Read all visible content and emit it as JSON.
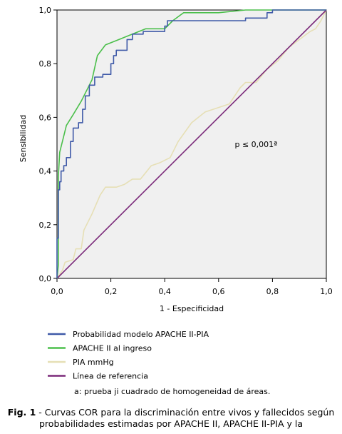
{
  "chart_data": {
    "type": "line",
    "xlabel": "1 - Especificidad",
    "ylabel": "Sensibilidad",
    "xlim": [
      0,
      1
    ],
    "ylim": [
      0,
      1
    ],
    "x_ticks": [
      "0,0",
      "0,2",
      "0,4",
      "0,6",
      "0,8",
      "1,0"
    ],
    "y_ticks": [
      "0,0",
      "0,2",
      "0,4",
      "0,6",
      "0,8",
      "1,0"
    ],
    "background": "#f0f0f0",
    "annotation": "p ≤ 0,001ª",
    "legend_position": "bottom",
    "series": [
      {
        "name": "Probabilidad modelo APACHE II-PIA",
        "color": "#3f5aa8",
        "points": [
          [
            0,
            0
          ],
          [
            0,
            0.15
          ],
          [
            0.005,
            0.15
          ],
          [
            0.005,
            0.33
          ],
          [
            0.01,
            0.33
          ],
          [
            0.01,
            0.36
          ],
          [
            0.015,
            0.36
          ],
          [
            0.015,
            0.4
          ],
          [
            0.025,
            0.4
          ],
          [
            0.025,
            0.42
          ],
          [
            0.035,
            0.42
          ],
          [
            0.035,
            0.45
          ],
          [
            0.05,
            0.45
          ],
          [
            0.05,
            0.51
          ],
          [
            0.06,
            0.51
          ],
          [
            0.06,
            0.56
          ],
          [
            0.08,
            0.56
          ],
          [
            0.08,
            0.58
          ],
          [
            0.095,
            0.58
          ],
          [
            0.095,
            0.63
          ],
          [
            0.105,
            0.63
          ],
          [
            0.105,
            0.68
          ],
          [
            0.12,
            0.68
          ],
          [
            0.12,
            0.72
          ],
          [
            0.14,
            0.72
          ],
          [
            0.14,
            0.75
          ],
          [
            0.17,
            0.75
          ],
          [
            0.17,
            0.76
          ],
          [
            0.2,
            0.76
          ],
          [
            0.2,
            0.8
          ],
          [
            0.21,
            0.8
          ],
          [
            0.21,
            0.83
          ],
          [
            0.22,
            0.83
          ],
          [
            0.22,
            0.85
          ],
          [
            0.26,
            0.85
          ],
          [
            0.26,
            0.89
          ],
          [
            0.28,
            0.89
          ],
          [
            0.28,
            0.91
          ],
          [
            0.32,
            0.91
          ],
          [
            0.32,
            0.92
          ],
          [
            0.4,
            0.92
          ],
          [
            0.4,
            0.94
          ],
          [
            0.41,
            0.94
          ],
          [
            0.41,
            0.96
          ],
          [
            0.7,
            0.96
          ],
          [
            0.7,
            0.97
          ],
          [
            0.78,
            0.97
          ],
          [
            0.78,
            0.99
          ],
          [
            0.8,
            0.99
          ],
          [
            0.8,
            1.0
          ],
          [
            1.0,
            1.0
          ]
        ]
      },
      {
        "name": "APACHE II al ingreso",
        "color": "#4bbf4b",
        "points": [
          [
            0,
            0
          ],
          [
            0.005,
            0.05
          ],
          [
            0.005,
            0.38
          ],
          [
            0.01,
            0.47
          ],
          [
            0.02,
            0.51
          ],
          [
            0.035,
            0.57
          ],
          [
            0.06,
            0.61
          ],
          [
            0.09,
            0.66
          ],
          [
            0.11,
            0.7
          ],
          [
            0.13,
            0.74
          ],
          [
            0.15,
            0.83
          ],
          [
            0.18,
            0.87
          ],
          [
            0.23,
            0.89
          ],
          [
            0.28,
            0.91
          ],
          [
            0.33,
            0.93
          ],
          [
            0.4,
            0.93
          ],
          [
            0.43,
            0.96
          ],
          [
            0.47,
            0.99
          ],
          [
            0.6,
            0.99
          ],
          [
            0.7,
            1.0
          ],
          [
            1.0,
            1.0
          ]
        ]
      },
      {
        "name": "PIA mmHg",
        "color": "#e6dfb5",
        "points": [
          [
            0,
            0
          ],
          [
            0.02,
            0.03
          ],
          [
            0.03,
            0.06
          ],
          [
            0.06,
            0.07
          ],
          [
            0.07,
            0.11
          ],
          [
            0.09,
            0.11
          ],
          [
            0.1,
            0.18
          ],
          [
            0.13,
            0.24
          ],
          [
            0.16,
            0.31
          ],
          [
            0.18,
            0.34
          ],
          [
            0.22,
            0.34
          ],
          [
            0.25,
            0.35
          ],
          [
            0.28,
            0.37
          ],
          [
            0.31,
            0.37
          ],
          [
            0.35,
            0.42
          ],
          [
            0.38,
            0.43
          ],
          [
            0.42,
            0.45
          ],
          [
            0.45,
            0.51
          ],
          [
            0.5,
            0.58
          ],
          [
            0.55,
            0.62
          ],
          [
            0.58,
            0.63
          ],
          [
            0.64,
            0.65
          ],
          [
            0.68,
            0.71
          ],
          [
            0.7,
            0.73
          ],
          [
            0.74,
            0.73
          ],
          [
            0.78,
            0.78
          ],
          [
            0.82,
            0.81
          ],
          [
            0.86,
            0.86
          ],
          [
            0.9,
            0.89
          ],
          [
            0.94,
            0.92
          ],
          [
            0.96,
            0.93
          ],
          [
            0.98,
            0.96
          ],
          [
            1.0,
            1.0
          ]
        ]
      },
      {
        "name": "Línea de referencia",
        "color": "#7b2a7a",
        "points": [
          [
            0,
            0
          ],
          [
            1,
            1
          ]
        ]
      }
    ]
  },
  "legend_note": "a: prueba ji cuadrado de homogeneidad de áreas.",
  "caption": {
    "label": "Fig. 1",
    "text": " - Curvas COR para la discriminación entre vivos y fallecidos según probabilidades estimadas por APACHE II,  APACHE II-PIA y la"
  }
}
